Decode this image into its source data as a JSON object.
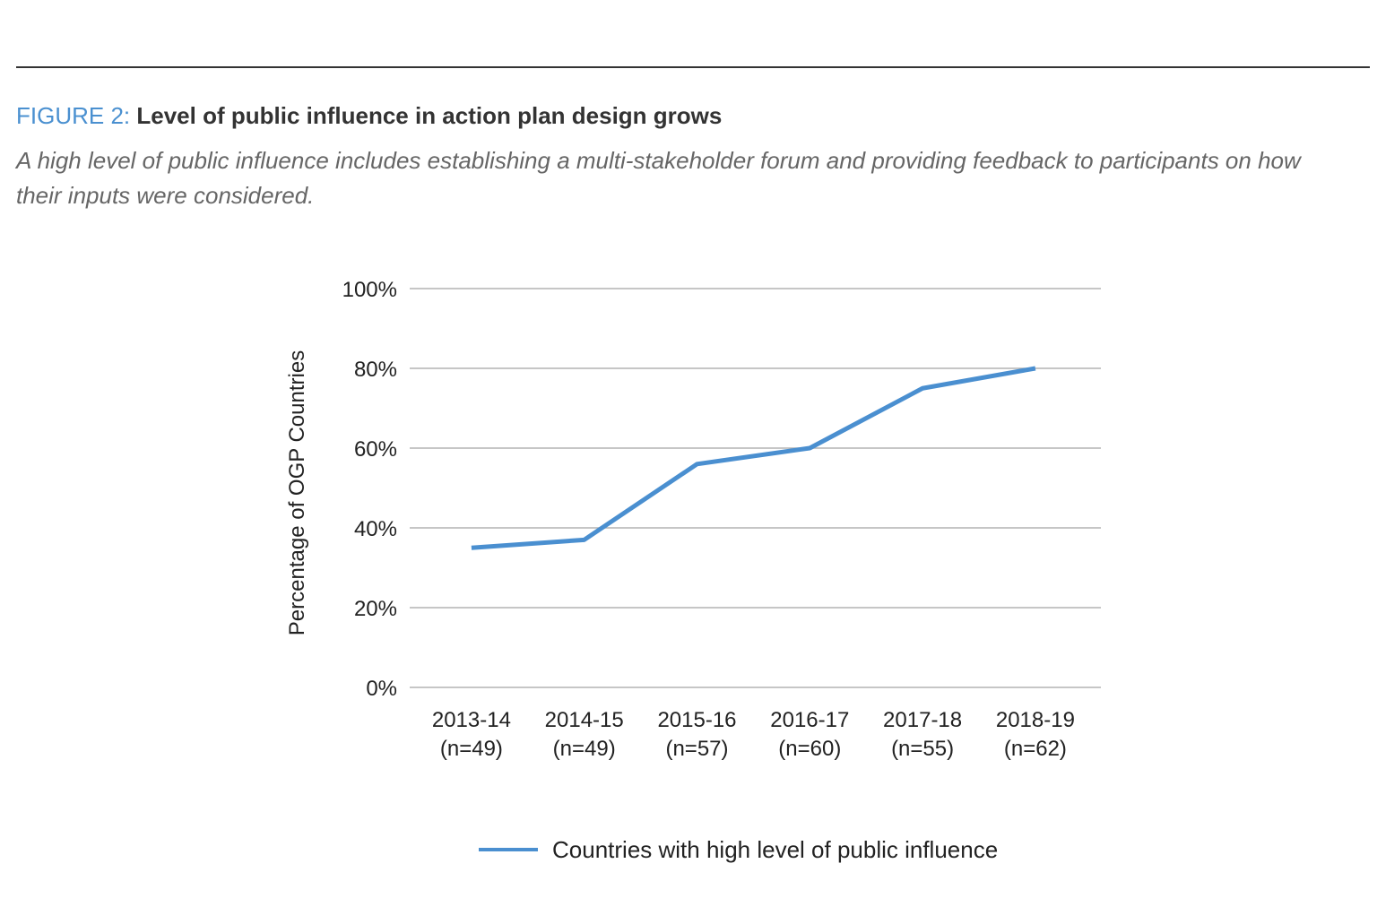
{
  "figure_label": "FIGURE 2:",
  "title": "Level of public influence in action plan design grows",
  "subtitle": "A high level of public influence includes establishing a multi-stakeholder forum and providing feedback to participants on how their inputs were considered.",
  "chart_data": {
    "type": "line",
    "title": "Level of public influence in action plan design grows",
    "categories": [
      "2013-14",
      "2014-15",
      "2015-16",
      "2016-17",
      "2017-18",
      "2018-19"
    ],
    "category_sublabels": [
      "(n=49)",
      "(n=49)",
      "(n=57)",
      "(n=60)",
      "(n=55)",
      "(n=62)"
    ],
    "series": [
      {
        "name": "Countries with high level of public influence",
        "values": [
          35,
          37,
          56,
          60,
          75,
          80
        ],
        "color": "#4a8fd0"
      }
    ],
    "xlabel": "",
    "ylabel": "Percentage of OGP Countries",
    "ylim": [
      0,
      100
    ],
    "yticks": [
      "0%",
      "20%",
      "40%",
      "60%",
      "80%",
      "100%"
    ],
    "grid": true,
    "legend": "bottom"
  }
}
